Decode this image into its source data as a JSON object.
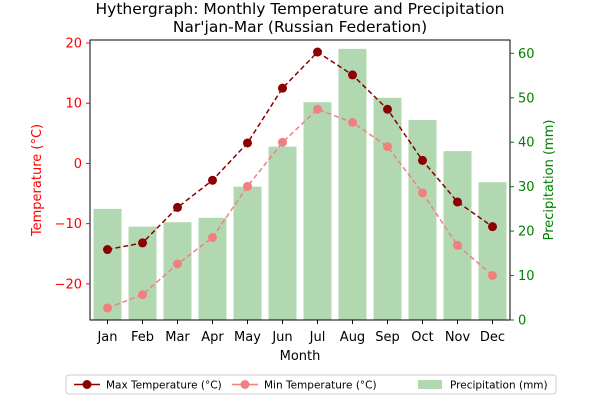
{
  "chart_data": {
    "type": "bar",
    "title": "Hythergraph: Monthly Temperature and Precipitation",
    "subtitle": "Nar'jan-Mar (Russian Federation)",
    "xlabel": "Month",
    "ylabel_left": "Temperature (°C)",
    "ylabel_right": "Precipitation (mm)",
    "categories": [
      "Jan",
      "Feb",
      "Mar",
      "Apr",
      "May",
      "Jun",
      "Jul",
      "Aug",
      "Sep",
      "Oct",
      "Nov",
      "Dec"
    ],
    "ylim_left": [
      -26,
      20.5
    ],
    "ylim_right": [
      0,
      63
    ],
    "yticks_left": [
      -20,
      -10,
      0,
      10,
      20
    ],
    "yticks_right": [
      0,
      10,
      20,
      30,
      40,
      50,
      60
    ],
    "grid": false,
    "legend_position": "bottom-center",
    "series": [
      {
        "name": "Max Temperature (°C)",
        "type": "line",
        "axis": "left",
        "color": "#8b0000",
        "values": [
          -14.3,
          -13.2,
          -7.3,
          -2.8,
          3.4,
          12.5,
          18.5,
          14.7,
          9.0,
          0.5,
          -6.4,
          -10.5
        ]
      },
      {
        "name": "Min Temperature (°C)",
        "type": "line",
        "axis": "left",
        "color": "#f08080",
        "values": [
          -24.0,
          -21.8,
          -16.7,
          -12.3,
          -3.8,
          3.5,
          9.0,
          6.8,
          2.8,
          -4.9,
          -13.6,
          -18.6
        ]
      },
      {
        "name": "Precipitation (mm)",
        "type": "bar",
        "axis": "right",
        "color": "#b2d8b2",
        "values": [
          25,
          21,
          22,
          23,
          30,
          39,
          49,
          61,
          50,
          45,
          38,
          31
        ]
      }
    ],
    "colors": {
      "left_axis": "#ff0000",
      "right_axis": "#008000"
    }
  }
}
